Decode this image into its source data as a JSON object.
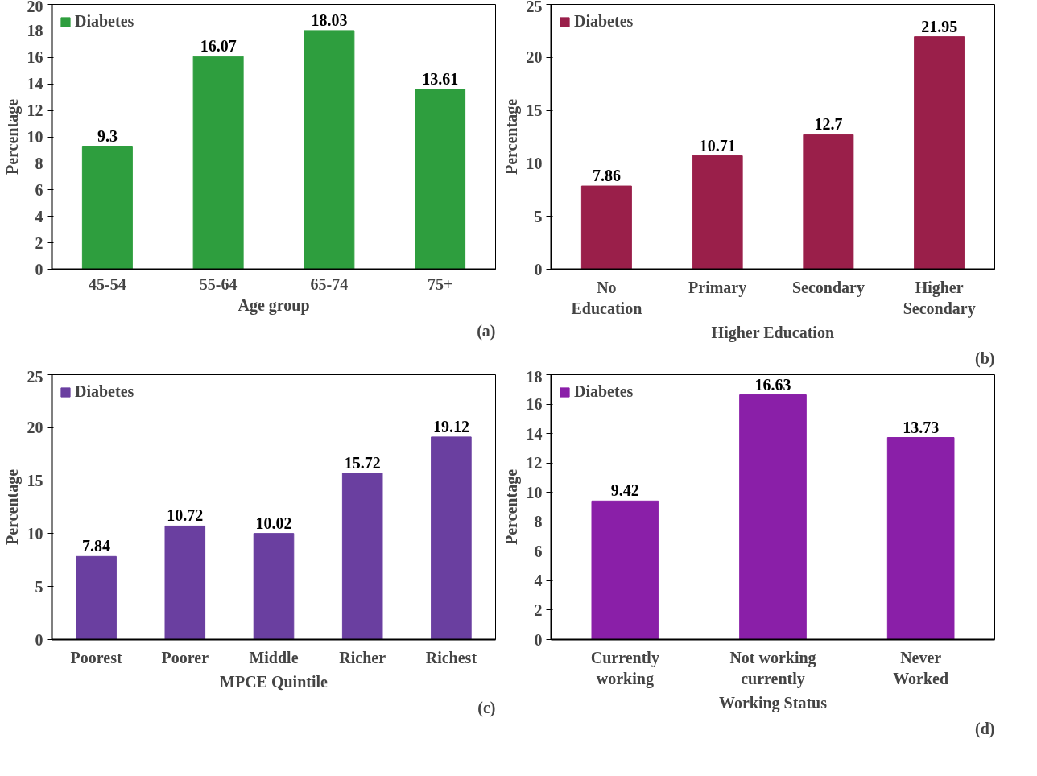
{
  "chart_data": [
    {
      "type": "bar",
      "categories": [
        "45-54",
        "55-64",
        "65-74",
        "75+"
      ],
      "series": [
        {
          "name": "Diabetes",
          "color": "#2e9e3e",
          "values": [
            9.3,
            16.07,
            18.03,
            13.61
          ]
        }
      ],
      "xlabel": "Age group",
      "ylabel": "Percentage",
      "ylim": [
        0,
        20
      ],
      "yticks": [
        0,
        2,
        4,
        6,
        8,
        10,
        12,
        14,
        16,
        18,
        20
      ],
      "data_labels": true,
      "legend": "top left",
      "grid": false,
      "annotations": [
        "(a)"
      ]
    },
    {
      "type": "bar",
      "categories": [
        "No Education",
        "Primary",
        "Secondary",
        "Higher Secondary"
      ],
      "series": [
        {
          "name": "Diabetes",
          "color": "#9a1f4a",
          "values": [
            7.86,
            10.71,
            12.7,
            21.95
          ]
        }
      ],
      "xlabel": "Higher Education",
      "ylabel": "Percentage",
      "ylim": [
        0,
        25
      ],
      "yticks": [
        0,
        5,
        10,
        15,
        20,
        25
      ],
      "data_labels": true,
      "legend": "top left",
      "grid": false,
      "annotations": [
        "(b)"
      ]
    },
    {
      "type": "bar",
      "categories": [
        "Poorest",
        "Poorer",
        "Middle",
        "Richer",
        "Richest"
      ],
      "series": [
        {
          "name": "Diabetes",
          "color": "#6a3fa0",
          "values": [
            7.84,
            10.72,
            10.02,
            15.72,
            19.12
          ]
        }
      ],
      "xlabel": "MPCE Quintile",
      "ylabel": "Percentage",
      "ylim": [
        0,
        25
      ],
      "yticks": [
        0,
        5,
        10,
        15,
        20,
        25
      ],
      "data_labels": true,
      "legend": "top left",
      "grid": false,
      "annotations": [
        "(c)"
      ]
    },
    {
      "type": "bar",
      "categories": [
        "Currently working",
        "Not working currently",
        "Never Worked"
      ],
      "series": [
        {
          "name": "Diabetes",
          "color": "#8a1fa8",
          "values": [
            9.42,
            16.63,
            13.73
          ]
        }
      ],
      "xlabel": "Working Status",
      "ylabel": "Percentage",
      "ylim": [
        0,
        18
      ],
      "yticks": [
        0,
        2,
        4,
        6,
        8,
        10,
        12,
        14,
        16,
        18
      ],
      "data_labels": true,
      "legend": "top left",
      "grid": false,
      "annotations": [
        "(d)"
      ]
    }
  ]
}
